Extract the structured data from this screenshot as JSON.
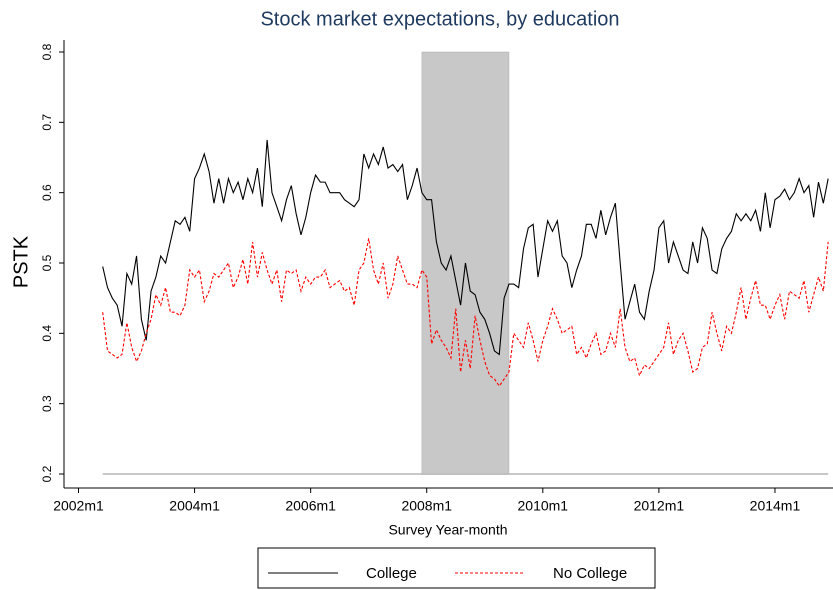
{
  "chart_data": {
    "type": "line",
    "title": "Stock market expectations, by education",
    "x_label": "Survey Year-month",
    "y_label": "PSTK",
    "x": [
      "2002m6",
      "2002m7",
      "2002m8",
      "2002m9",
      "2002m10",
      "2002m11",
      "2002m12",
      "2003m1",
      "2003m2",
      "2003m3",
      "2003m4",
      "2003m5",
      "2003m6",
      "2003m7",
      "2003m8",
      "2003m9",
      "2003m10",
      "2003m11",
      "2003m12",
      "2004m1",
      "2004m2",
      "2004m3",
      "2004m4",
      "2004m5",
      "2004m6",
      "2004m7",
      "2004m8",
      "2004m9",
      "2004m10",
      "2004m11",
      "2004m12",
      "2005m1",
      "2005m2",
      "2005m3",
      "2005m4",
      "2005m5",
      "2005m6",
      "2005m7",
      "2005m8",
      "2005m9",
      "2005m10",
      "2005m11",
      "2005m12",
      "2006m1",
      "2006m2",
      "2006m3",
      "2006m4",
      "2006m5",
      "2006m6",
      "2006m7",
      "2006m8",
      "2006m9",
      "2006m10",
      "2006m11",
      "2006m12",
      "2007m1",
      "2007m2",
      "2007m3",
      "2007m4",
      "2007m5",
      "2007m6",
      "2007m7",
      "2007m8",
      "2007m9",
      "2007m10",
      "2007m11",
      "2007m12",
      "2008m1",
      "2008m2",
      "2008m3",
      "2008m4",
      "2008m5",
      "2008m6",
      "2008m7",
      "2008m8",
      "2008m9",
      "2008m10",
      "2008m11",
      "2008m12",
      "2009m1",
      "2009m2",
      "2009m3",
      "2009m4",
      "2009m5",
      "2009m6",
      "2009m7",
      "2009m8",
      "2009m9",
      "2009m10",
      "2009m11",
      "2009m12",
      "2010m1",
      "2010m2",
      "2010m3",
      "2010m4",
      "2010m5",
      "2010m6",
      "2010m7",
      "2010m8",
      "2010m9",
      "2010m10",
      "2010m11",
      "2010m12",
      "2011m1",
      "2011m2",
      "2011m3",
      "2011m4",
      "2011m5",
      "2011m6",
      "2011m7",
      "2011m8",
      "2011m9",
      "2011m10",
      "2011m11",
      "2011m12",
      "2012m1",
      "2012m2",
      "2012m3",
      "2012m4",
      "2012m5",
      "2012m6",
      "2012m7",
      "2012m8",
      "2012m9",
      "2012m10",
      "2012m11",
      "2012m12",
      "2013m1",
      "2013m2",
      "2013m3",
      "2013m4",
      "2013m5",
      "2013m6",
      "2013m7",
      "2013m8",
      "2013m9",
      "2013m10",
      "2013m11",
      "2013m12",
      "2014m1",
      "2014m2",
      "2014m3",
      "2014m4",
      "2014m5",
      "2014m6",
      "2014m7",
      "2014m8",
      "2014m9",
      "2014m10",
      "2014m11",
      "2014m12"
    ],
    "series": [
      {
        "name": "College",
        "color": "#000000",
        "dash": false,
        "values": [
          0.495,
          0.465,
          0.45,
          0.44,
          0.41,
          0.485,
          0.47,
          0.51,
          0.42,
          0.39,
          0.46,
          0.48,
          0.51,
          0.5,
          0.53,
          0.56,
          0.555,
          0.565,
          0.545,
          0.62,
          0.635,
          0.655,
          0.63,
          0.585,
          0.62,
          0.585,
          0.62,
          0.6,
          0.615,
          0.59,
          0.62,
          0.6,
          0.635,
          0.58,
          0.675,
          0.6,
          0.58,
          0.56,
          0.59,
          0.61,
          0.57,
          0.54,
          0.565,
          0.6,
          0.625,
          0.615,
          0.615,
          0.6,
          0.6,
          0.6,
          0.59,
          0.585,
          0.58,
          0.59,
          0.655,
          0.635,
          0.655,
          0.64,
          0.665,
          0.635,
          0.64,
          0.63,
          0.64,
          0.59,
          0.61,
          0.635,
          0.6,
          0.59,
          0.59,
          0.53,
          0.5,
          0.49,
          0.51,
          0.475,
          0.44,
          0.5,
          0.46,
          0.455,
          0.43,
          0.42,
          0.4,
          0.375,
          0.37,
          0.45,
          0.47,
          0.47,
          0.465,
          0.52,
          0.55,
          0.555,
          0.48,
          0.52,
          0.56,
          0.545,
          0.56,
          0.51,
          0.5,
          0.465,
          0.49,
          0.51,
          0.555,
          0.555,
          0.535,
          0.575,
          0.54,
          0.565,
          0.585,
          0.5,
          0.42,
          0.445,
          0.47,
          0.43,
          0.42,
          0.46,
          0.49,
          0.55,
          0.56,
          0.5,
          0.53,
          0.51,
          0.49,
          0.485,
          0.53,
          0.5,
          0.55,
          0.535,
          0.49,
          0.485,
          0.52,
          0.535,
          0.545,
          0.57,
          0.56,
          0.57,
          0.56,
          0.575,
          0.545,
          0.6,
          0.55,
          0.59,
          0.595,
          0.605,
          0.59,
          0.6,
          0.62,
          0.6,
          0.61,
          0.565,
          0.615,
          0.585,
          0.62
        ]
      },
      {
        "name": "No College",
        "color": "#ff0000",
        "dash": true,
        "values": [
          0.43,
          0.375,
          0.37,
          0.365,
          0.37,
          0.415,
          0.38,
          0.36,
          0.375,
          0.4,
          0.42,
          0.455,
          0.44,
          0.465,
          0.43,
          0.43,
          0.425,
          0.44,
          0.49,
          0.48,
          0.49,
          0.445,
          0.46,
          0.485,
          0.48,
          0.49,
          0.5,
          0.465,
          0.48,
          0.505,
          0.47,
          0.53,
          0.48,
          0.515,
          0.49,
          0.47,
          0.49,
          0.445,
          0.49,
          0.485,
          0.49,
          0.46,
          0.48,
          0.47,
          0.48,
          0.48,
          0.49,
          0.465,
          0.47,
          0.475,
          0.46,
          0.465,
          0.44,
          0.49,
          0.5,
          0.535,
          0.49,
          0.47,
          0.5,
          0.45,
          0.47,
          0.51,
          0.49,
          0.47,
          0.47,
          0.465,
          0.49,
          0.48,
          0.385,
          0.405,
          0.39,
          0.38,
          0.365,
          0.435,
          0.345,
          0.39,
          0.35,
          0.425,
          0.39,
          0.36,
          0.34,
          0.335,
          0.325,
          0.335,
          0.345,
          0.4,
          0.39,
          0.38,
          0.415,
          0.39,
          0.36,
          0.39,
          0.41,
          0.435,
          0.42,
          0.4,
          0.405,
          0.41,
          0.37,
          0.38,
          0.365,
          0.385,
          0.4,
          0.37,
          0.375,
          0.4,
          0.38,
          0.435,
          0.38,
          0.36,
          0.365,
          0.34,
          0.355,
          0.35,
          0.36,
          0.37,
          0.38,
          0.415,
          0.37,
          0.39,
          0.4,
          0.375,
          0.345,
          0.35,
          0.38,
          0.385,
          0.43,
          0.4,
          0.375,
          0.41,
          0.4,
          0.43,
          0.465,
          0.42,
          0.45,
          0.475,
          0.44,
          0.44,
          0.42,
          0.44,
          0.455,
          0.42,
          0.46,
          0.455,
          0.45,
          0.475,
          0.43,
          0.455,
          0.48,
          0.46,
          0.53
        ]
      }
    ],
    "shaded": {
      "start": "2007m12",
      "end": "2009m6",
      "high": 0.8,
      "low": 0.2,
      "color": "#c8c8c8"
    },
    "xlim": [
      "2001m10",
      "2015m1"
    ],
    "xticks": [
      "2002m1",
      "2004m1",
      "2006m1",
      "2008m1",
      "2010m1",
      "2012m1",
      "2014m1"
    ],
    "ylim": [
      0.2,
      0.8
    ],
    "yticks": [
      0.2,
      0.3,
      0.4,
      0.5,
      0.6,
      0.7,
      0.8
    ],
    "legend": "bottom"
  }
}
